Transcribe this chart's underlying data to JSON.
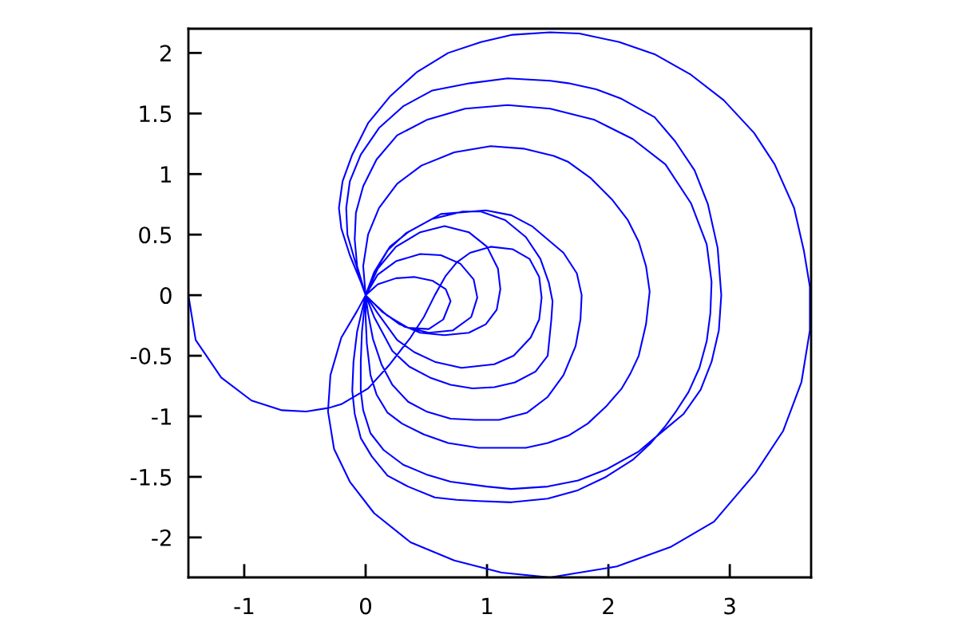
{
  "chart_data": {
    "type": "line",
    "series": [
      {
        "color": "#0000ff",
        "x": [
          -1.46,
          -1.4,
          -1.19,
          -0.94,
          -0.69,
          -0.49,
          -0.3,
          -0.2,
          0.02,
          0.2,
          0.37,
          0.48,
          0.57,
          0.66,
          0.75,
          0.86,
          1.03,
          1.21,
          1.35,
          1.43,
          1.45,
          1.43,
          1.36,
          1.22,
          1.06,
          0.79,
          0.57,
          0.4,
          0.26,
          0.1,
          0,
          0.08,
          0.2,
          0.35,
          0.62,
          0.99,
          1.2,
          1.37,
          1.63,
          1.74,
          1.78,
          1.77,
          1.73,
          1.63,
          1.5,
          1.33,
          1.1,
          0.9,
          0.7,
          0.5,
          0.35,
          0.22,
          0.13,
          0.06,
          0.02,
          0,
          0.07,
          0.18,
          0.33,
          0.55,
          0.8,
          0.95,
          1.15,
          1.32,
          1.44,
          1.51,
          1.54,
          1.53,
          1.5,
          1.4,
          1.23,
          1.06,
          0.88,
          0.7,
          0.53,
          0.36,
          0.22,
          0.07,
          0,
          -0.07,
          -0.09,
          -0.08,
          -0.02,
          0.09,
          0.26,
          0.51,
          0.82,
          1.17,
          1.52,
          1.88,
          2.2,
          2.47,
          2.68,
          2.81,
          2.85,
          2.84,
          2.81,
          2.75,
          2.66,
          2.55,
          2.47,
          2.35,
          2.2,
          1.98,
          1.75,
          1.5,
          1.2,
          0.93,
          0.75,
          0.57,
          0.35,
          0.18,
          0.05,
          -0.04,
          -0.09,
          -0.11,
          -0.1,
          -0.07,
          0,
          0.1,
          0.25,
          0.45,
          0.65,
          0.85,
          1.0,
          1.09,
          1.11,
          1.08,
          0.99,
          0.85,
          0.65,
          0.45,
          0.28,
          0.13,
          0,
          -0.09,
          -0.15,
          -0.16,
          -0.13,
          -0.04,
          0.11,
          0.31,
          0.55,
          0.86,
          1.17,
          1.52,
          1.67,
          1.9,
          2.11,
          2.38,
          2.55,
          2.71,
          2.82,
          2.9,
          2.93,
          2.91,
          2.85,
          2.76,
          2.62,
          2.5,
          2.38,
          2.25,
          1.98,
          1.75,
          1.5,
          1.2,
          1.0,
          0.7,
          0.5,
          0.31,
          0.15,
          0.04,
          -0.02,
          -0.04,
          -0.04,
          -0.03,
          0,
          -0.02,
          0.02,
          0.11,
          0.26,
          0.46,
          0.73,
          1.03,
          1.3,
          1.55,
          1.67,
          1.85,
          2.03,
          2.16,
          2.25,
          2.31,
          2.34,
          2.31,
          2.25,
          2.18,
          2.11,
          1.98,
          1.83,
          1.67,
          1.5,
          1.32,
          0.93,
          0.68,
          0.48,
          0.3,
          0.18,
          0.09,
          0.04,
          0.01,
          0.0,
          0,
          0.1,
          0.25,
          0.45,
          0.62,
          0.78,
          0.89,
          0.92,
          0.87,
          0.72,
          0.52,
          0.32,
          0.14,
          0,
          -0.04,
          -0.13,
          -0.2,
          -0.22,
          -0.19,
          -0.11,
          0.02,
          0.2,
          0.42,
          0.68,
          0.95,
          1.21,
          1.52,
          1.76,
          2.09,
          2.38,
          2.68,
          2.95,
          3.2,
          3.37,
          3.53,
          3.61,
          3.66,
          3.66,
          3.59,
          3.44,
          3.21,
          2.87,
          2.51,
          2.07,
          1.52,
          1.12,
          0.73,
          0.37,
          0.07,
          -0.13,
          -0.26,
          -0.31,
          -0.29,
          -0.2,
          -0.07,
          0,
          0.1,
          0.25,
          0.4,
          0.55,
          0.66,
          0.7,
          0.64,
          0.52,
          0.35,
          0.18,
          0.06,
          0
        ],
        "values": [
          0,
          -0.37,
          -0.68,
          -0.87,
          -0.95,
          -0.96,
          -0.93,
          -0.9,
          -0.77,
          -0.57,
          -0.35,
          -0.18,
          0.0,
          0.16,
          0.27,
          0.35,
          0.4,
          0.38,
          0.3,
          0.15,
          -0.02,
          -0.2,
          -0.35,
          -0.5,
          -0.57,
          -0.6,
          -0.55,
          -0.47,
          -0.37,
          -0.15,
          0,
          0.2,
          0.4,
          0.52,
          0.67,
          0.7,
          0.66,
          0.57,
          0.35,
          0.18,
          0.0,
          -0.2,
          -0.42,
          -0.66,
          -0.84,
          -0.97,
          -1.03,
          -1.03,
          -1.02,
          -0.96,
          -0.88,
          -0.74,
          -0.57,
          -0.36,
          -0.15,
          0,
          0.19,
          0.37,
          0.51,
          0.63,
          0.69,
          0.69,
          0.62,
          0.48,
          0.3,
          0.1,
          -0.05,
          -0.2,
          -0.5,
          -0.63,
          -0.72,
          -0.76,
          -0.77,
          -0.74,
          -0.68,
          -0.59,
          -0.46,
          -0.18,
          0,
          0.24,
          0.46,
          0.68,
          0.9,
          1.12,
          1.32,
          1.45,
          1.54,
          1.57,
          1.54,
          1.45,
          1.29,
          1.08,
          0.76,
          0.42,
          0.11,
          -0.15,
          -0.38,
          -0.6,
          -0.8,
          -0.97,
          -1.08,
          -1.22,
          -1.36,
          -1.5,
          -1.61,
          -1.68,
          -1.71,
          -1.7,
          -1.69,
          -1.67,
          -1.58,
          -1.49,
          -1.33,
          -1.18,
          -0.98,
          -0.79,
          -0.55,
          -0.3,
          0,
          0.22,
          0.4,
          0.52,
          0.57,
          0.52,
          0.4,
          0.22,
          0.05,
          -0.12,
          -0.24,
          -0.31,
          -0.33,
          -0.31,
          -0.24,
          -0.13,
          0,
          0.29,
          0.5,
          0.72,
          0.94,
          1.16,
          1.38,
          1.56,
          1.69,
          1.75,
          1.79,
          1.77,
          1.75,
          1.7,
          1.62,
          1.47,
          1.27,
          1.03,
          0.75,
          0.39,
          0.0,
          -0.29,
          -0.55,
          -0.78,
          -0.98,
          -1.08,
          -1.18,
          -1.29,
          -1.44,
          -1.53,
          -1.58,
          -1.6,
          -1.58,
          -1.54,
          -1.48,
          -1.4,
          -1.28,
          -1.14,
          -0.95,
          -0.79,
          -0.55,
          -0.3,
          0,
          0.24,
          0.5,
          0.72,
          0.92,
          1.07,
          1.18,
          1.23,
          1.21,
          1.15,
          1.1,
          0.97,
          0.79,
          0.62,
          0.44,
          0.24,
          0.03,
          -0.24,
          -0.5,
          -0.65,
          -0.77,
          -0.92,
          -1.06,
          -1.16,
          -1.22,
          -1.26,
          -1.26,
          -1.22,
          -1.15,
          -1.06,
          -0.97,
          -0.82,
          -0.66,
          -0.4,
          -0.18,
          0,
          0.17,
          0.28,
          0.34,
          0.33,
          0.26,
          0.13,
          -0.02,
          -0.18,
          -0.29,
          -0.31,
          -0.26,
          -0.14,
          0,
          0.11,
          0.33,
          0.55,
          0.72,
          0.94,
          1.16,
          1.42,
          1.64,
          1.84,
          2.0,
          2.09,
          2.15,
          2.17,
          2.16,
          2.09,
          1.99,
          1.82,
          1.61,
          1.34,
          1.08,
          0.72,
          0.37,
          0.07,
          -0.29,
          -0.72,
          -1.12,
          -1.47,
          -1.87,
          -2.08,
          -2.24,
          -2.33,
          -2.29,
          -2.19,
          -2.04,
          -1.8,
          -1.54,
          -1.27,
          -0.96,
          -0.66,
          -0.35,
          -0.13,
          0,
          0.09,
          0.14,
          0.15,
          0.12,
          0.05,
          -0.05,
          -0.2,
          -0.28,
          -0.27,
          -0.17,
          -0.06,
          0
        ]
      }
    ],
    "xlim": [
      -1.46,
      3.67
    ],
    "ylim": [
      -2.33,
      2.2
    ],
    "xticks": [
      -1,
      0,
      1,
      2,
      3
    ],
    "yticks": [
      -2,
      -1.5,
      -1,
      -0.5,
      0,
      0.5,
      1,
      1.5,
      2
    ],
    "grid": false,
    "marker": "none",
    "line_style": "solid"
  }
}
